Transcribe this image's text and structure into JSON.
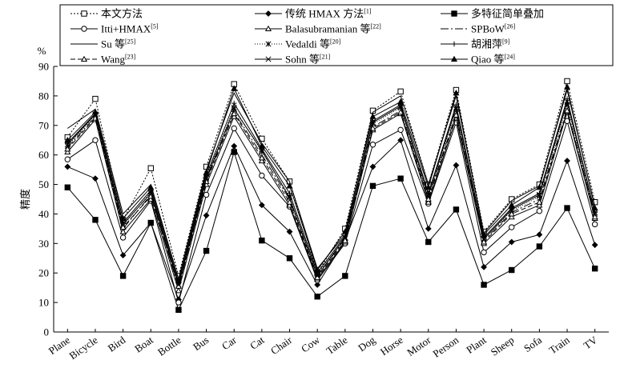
{
  "chart_data": {
    "type": "line",
    "title": "",
    "xlabel": "",
    "ylabel": "精度",
    "yunit": "%",
    "ylim": [
      0,
      90
    ],
    "yticks": [
      0,
      10,
      20,
      30,
      40,
      50,
      60,
      70,
      80,
      90
    ],
    "grid": false,
    "legend_position": "top",
    "categories": [
      "Plane",
      "Bicycle",
      "Bird",
      "Boat",
      "Bottle",
      "Bus",
      "Car",
      "Cat",
      "Chair",
      "Cow",
      "Table",
      "Dog",
      "Horse",
      "Motor",
      "Person",
      "Plant",
      "Sheep",
      "Sofa",
      "Train",
      "TV"
    ],
    "series": [
      {
        "name": "本文方法",
        "ref": "",
        "marker": "square-open",
        "dash": "2,2",
        "color": "#000000",
        "values": [
          66,
          79,
          38,
          55.5,
          19,
          56,
          84,
          65.5,
          51,
          20,
          35,
          75,
          81.5,
          50,
          82,
          34,
          45,
          50,
          85,
          44
        ]
      },
      {
        "name": "传统 HMAX 方法",
        "ref": "[1]",
        "marker": "diamond",
        "dash": "",
        "color": "#000000",
        "values": [
          56,
          52,
          26,
          37,
          11,
          39.5,
          63,
          43,
          34,
          16,
          31,
          56,
          65,
          35,
          56.5,
          22,
          30.5,
          33,
          58,
          29.5
        ]
      },
      {
        "name": "多特征简单叠加",
        "ref": "",
        "marker": "square",
        "dash": "",
        "color": "#000000",
        "values": [
          49,
          38,
          19,
          37,
          7.5,
          27.5,
          61,
          31,
          25,
          12,
          19,
          49.5,
          52,
          30.5,
          41.5,
          16,
          21,
          29,
          42,
          21.5
        ]
      },
      {
        "name": "Itti+HMAX",
        "ref": "[5]",
        "marker": "circle-open",
        "dash": "",
        "color": "#000000",
        "values": [
          58.5,
          65,
          32,
          44.5,
          10,
          46.5,
          69,
          53,
          42.5,
          17.5,
          30,
          63.5,
          68.5,
          43.5,
          71,
          27,
          35.5,
          41,
          71.5,
          36.5
        ]
      },
      {
        "name": "Balasubramanian 等",
        "ref": "[22]",
        "marker": "triangle-open",
        "dash": "",
        "color": "#000000",
        "values": [
          61,
          72,
          34,
          45,
          14,
          50,
          73,
          58,
          43,
          18,
          30.5,
          68.5,
          74,
          44,
          72.5,
          30,
          39,
          43,
          74.5,
          38.5
        ]
      },
      {
        "name": "SPBoW",
        "ref": "[26]",
        "marker": "none",
        "dash": "10,3,2,3",
        "color": "#000000",
        "values": [
          62.5,
          73,
          35,
          46.5,
          15,
          51.5,
          74.5,
          60,
          45,
          19,
          31.5,
          69.5,
          75,
          45.5,
          74,
          31,
          40.5,
          45,
          75.5,
          39.5
        ]
      },
      {
        "name": "Su 等",
        "ref": "[25]",
        "marker": "none",
        "dash": "",
        "color": "#000000",
        "values": [
          69,
          75.5,
          40,
          50,
          18,
          55,
          81,
          64,
          51,
          21.5,
          33,
          74.5,
          80,
          50,
          80,
          33.5,
          44.5,
          49.5,
          82,
          42.5
        ]
      },
      {
        "name": "Vedaldi 等",
        "ref": "[20]",
        "marker": "asterisk",
        "dash": "1,2",
        "color": "#000000",
        "values": [
          63,
          73.5,
          36,
          47.5,
          16,
          52.5,
          76,
          61,
          46,
          19.5,
          32,
          70.5,
          76,
          46,
          75.5,
          31.5,
          41,
          46,
          77,
          40
        ]
      },
      {
        "name": "胡湘萍",
        "ref": "[9]",
        "marker": "plus",
        "dash": "",
        "color": "#000000",
        "values": [
          64,
          74,
          37,
          48,
          16.5,
          53,
          77.5,
          62,
          47,
          20,
          32.5,
          71.5,
          77,
          47,
          77,
          32,
          42,
          47,
          79,
          40.5
        ]
      },
      {
        "name": "Wang",
        "ref": "[23]",
        "marker": "triangle-open",
        "dash": "6,3",
        "color": "#000000",
        "values": [
          62,
          72.5,
          35.5,
          46,
          15.5,
          51,
          74,
          59,
          44,
          18.5,
          31,
          69,
          74.5,
          45,
          73.5,
          30.5,
          40,
          44,
          75,
          39
        ]
      },
      {
        "name": "Sohn 等",
        "ref": "[21]",
        "marker": "x",
        "dash": "",
        "color": "#000000",
        "values": [
          63.5,
          73.8,
          36.5,
          47,
          16,
          52,
          75.5,
          61.5,
          45.5,
          19,
          32,
          71,
          76.5,
          46.5,
          76,
          31.5,
          41.5,
          46.5,
          78,
          40.5
        ]
      },
      {
        "name": "Qiao 等",
        "ref": "[24]",
        "marker": "triangle",
        "dash": "",
        "color": "#000000",
        "values": [
          65,
          74.5,
          38.5,
          49,
          17.5,
          54,
          82.5,
          63,
          49.5,
          21,
          34,
          73,
          78,
          49,
          81,
          33,
          43,
          49,
          83,
          42
        ]
      }
    ]
  }
}
